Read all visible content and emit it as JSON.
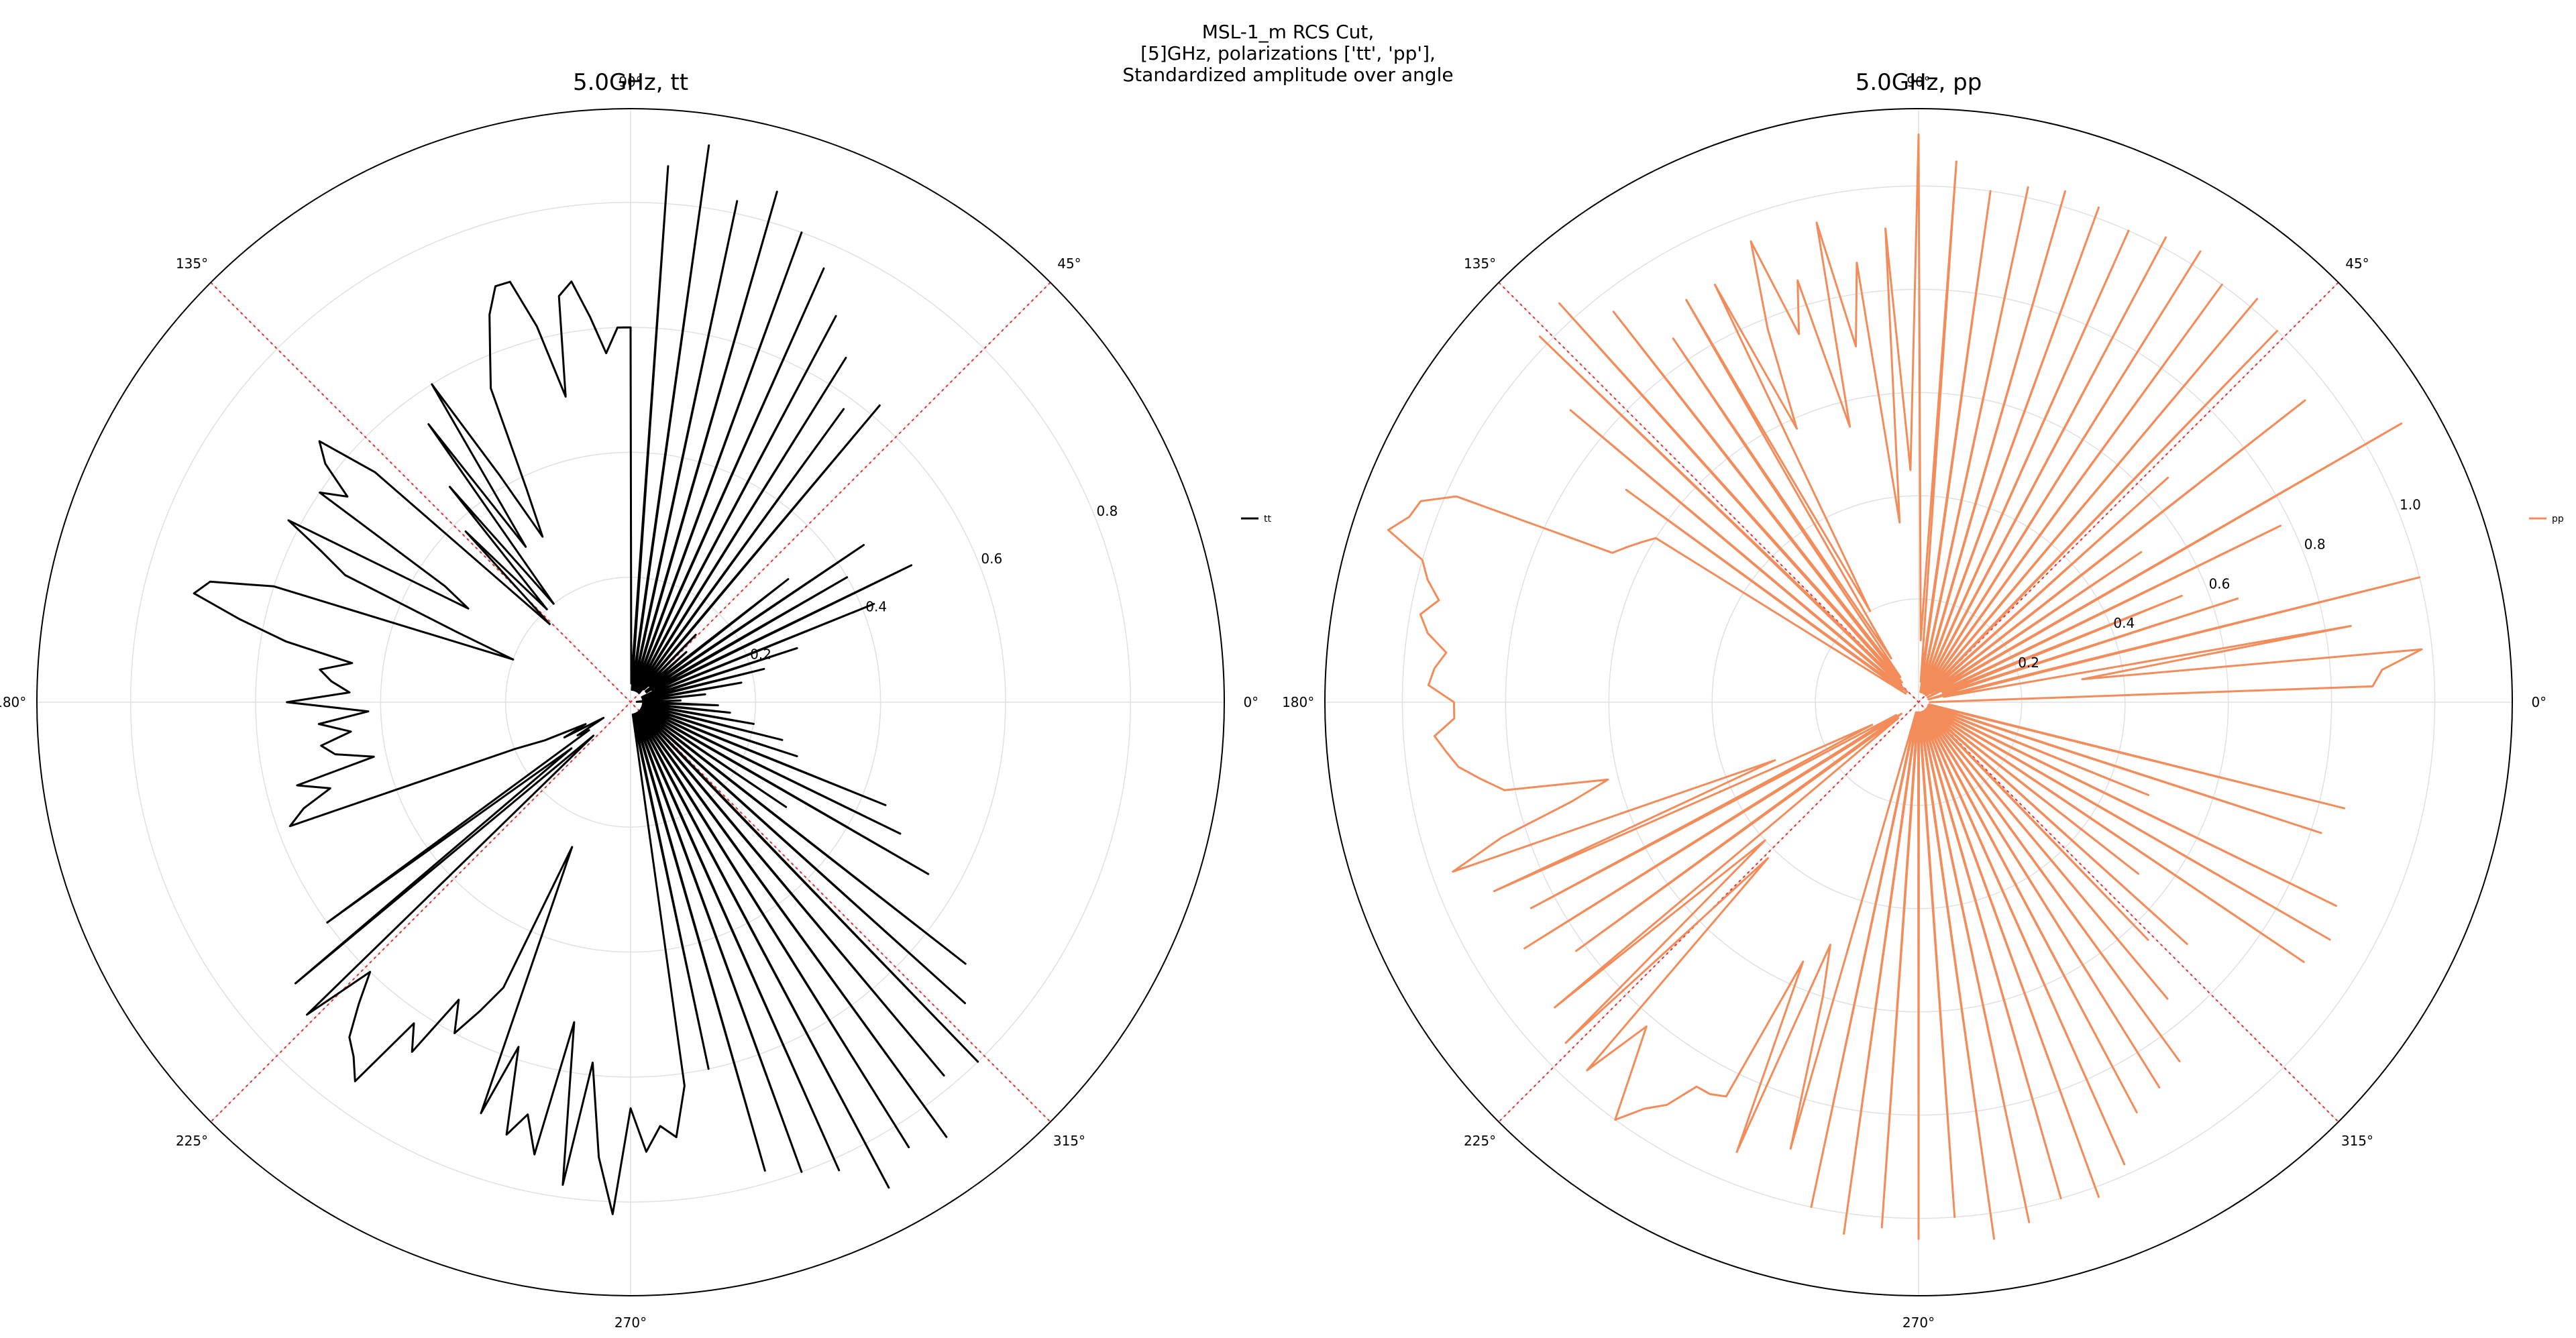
{
  "figure": {
    "suptitle_lines": [
      "MSL-1_m RCS Cut,",
      "[5]GHz, polarizations ['tt', 'pp'],",
      "Standardized amplitude over angle"
    ]
  },
  "colors": {
    "tt": "#000000",
    "pp": "#f28c5a",
    "reference_lines": "#e03030",
    "grid": "#e0e0e0",
    "frame": "#000000"
  },
  "angle_labels": [
    "0°",
    "45°",
    "90°",
    "135°",
    "180°",
    "225°",
    "270°",
    "315°"
  ],
  "chart_data": [
    {
      "type": "line",
      "projection": "polar",
      "title": "5.0GHz, tt",
      "angle_unit": "degrees",
      "theta_ticks": [
        0,
        45,
        90,
        135,
        180,
        225,
        270,
        315
      ],
      "r_ticks": [
        0.2,
        0.4,
        0.6,
        0.8
      ],
      "r_tick_labels": [
        "0.2",
        "0.4",
        "0.6",
        "0.8"
      ],
      "rlim": [
        0,
        0.95
      ],
      "grid": true,
      "reference_lines_deg": [
        45,
        135
      ],
      "legend_position": "right",
      "series": [
        {
          "name": "tt",
          "color": "#000000",
          "theta": [
            0,
            2,
            4,
            6,
            8,
            10,
            12,
            14,
            16,
            18,
            20,
            22,
            24,
            26,
            28,
            30,
            32,
            34,
            36,
            38,
            40,
            42,
            44,
            46,
            48,
            50,
            52,
            54,
            56,
            58,
            60,
            62,
            64,
            66,
            68,
            70,
            72,
            74,
            76,
            78,
            80,
            82,
            84,
            86,
            88,
            90,
            92,
            94,
            96,
            98,
            100,
            102,
            104,
            106,
            108,
            110,
            112,
            114,
            116,
            118,
            120,
            122,
            124,
            126,
            128,
            130,
            132,
            134,
            136,
            138,
            140,
            142,
            144,
            146,
            148,
            150,
            152,
            154,
            156,
            158,
            160,
            162,
            164,
            166,
            168,
            170,
            172,
            174,
            176,
            178,
            180,
            182,
            184,
            186,
            188,
            190,
            192,
            194,
            196,
            198,
            200,
            202,
            204,
            206,
            208,
            210,
            212,
            214,
            216,
            218,
            220,
            222,
            224,
            226,
            228,
            230,
            232,
            234,
            236,
            238,
            240,
            242,
            244,
            246,
            248,
            250,
            252,
            254,
            256,
            258,
            260,
            262,
            264,
            266,
            268,
            270,
            272,
            274,
            276,
            278,
            280,
            282,
            284,
            286,
            288,
            290,
            292,
            294,
            296,
            298,
            300,
            302,
            304,
            306,
            308,
            310,
            312,
            314,
            316,
            318,
            320,
            322,
            324,
            326,
            328,
            330,
            332,
            334,
            336,
            338,
            340,
            342,
            344,
            346,
            348,
            350,
            352,
            354,
            356,
            358
          ],
          "r": [
            0.03,
            0.08,
            0.01,
            0.12,
            0.02,
            0.18,
            0.02,
            0.22,
            0.03,
            0.28,
            0.02,
            0.42,
            0.02,
            0.5,
            0.04,
            0.4,
            0.03,
            0.45,
            0.03,
            0.32,
            0.04,
            0.12,
            0.03,
            0.15,
            0.02,
            0.62,
            0.02,
            0.58,
            0.02,
            0.65,
            0.02,
            0.7,
            0.02,
            0.76,
            0.02,
            0.8,
            0.02,
            0.85,
            0.02,
            0.82,
            0.02,
            0.9,
            0.02,
            0.86,
            0.03,
            0.6,
            0.6,
            0.56,
            0.62,
            0.68,
            0.66,
            0.5,
            0.62,
            0.7,
            0.7,
            0.66,
            0.6,
            0.55,
            0.38,
            0.3,
            0.42,
            0.6,
            0.3,
            0.55,
            0.2,
            0.45,
            0.2,
            0.38,
            0.18,
            0.55,
            0.65,
            0.62,
            0.56,
            0.6,
            0.35,
            0.3,
            0.62,
            0.55,
            0.5,
            0.3,
            0.2,
            0.6,
            0.7,
            0.72,
            0.64,
            0.56,
            0.45,
            0.5,
            0.48,
            0.45,
            0.55,
            0.42,
            0.5,
            0.45,
            0.5,
            0.48,
            0.42,
            0.55,
            0.5,
            0.55,
            0.58,
            0.2,
            0.15,
            0.08,
            0.12,
            0.05,
            0.1,
            0.08,
            0.6,
            0.12,
            0.7,
            0.08,
            0.72,
            0.6,
            0.65,
            0.7,
            0.72,
            0.75,
            0.62,
            0.66,
            0.55,
            0.6,
            0.55,
            0.5,
            0.25,
            0.7,
            0.58,
            0.72,
            0.68,
            0.74,
            0.52,
            0.78,
            0.58,
            0.73,
            0.82,
            0.65,
            0.72,
            0.68,
            0.7,
            0.62,
            0.02,
            0.6,
            0.02,
            0.78,
            0.02,
            0.8,
            0.02,
            0.82,
            0.02,
            0.88,
            0.02,
            0.84,
            0.02,
            0.86,
            0.02,
            0.78,
            0.02,
            0.8,
            0.02,
            0.72,
            0.02,
            0.68,
            0.02,
            0.3,
            0.02,
            0.55,
            0.02,
            0.48,
            0.02,
            0.44,
            0.02,
            0.28,
            0.02,
            0.25,
            0.02,
            0.2,
            0.02,
            0.16,
            0.02,
            0.14,
            0.02,
            0.12,
            0.02,
            0.08
          ]
        }
      ]
    },
    {
      "type": "line",
      "projection": "polar",
      "title": "5.0GHz, pp",
      "angle_unit": "degrees",
      "theta_ticks": [
        0,
        45,
        90,
        135,
        180,
        225,
        270,
        315
      ],
      "r_ticks": [
        0.2,
        0.4,
        0.6,
        0.8,
        1.0
      ],
      "r_tick_labels": [
        "0.2",
        "0.4",
        "0.6",
        "0.8",
        "1.0"
      ],
      "rlim": [
        0,
        1.15
      ],
      "grid": true,
      "reference_lines_deg": [
        45,
        135
      ],
      "legend_position": "right",
      "series": [
        {
          "name": "pp",
          "color": "#f28c5a",
          "theta": [
            0,
            2,
            4,
            6,
            8,
            10,
            12,
            14,
            16,
            18,
            20,
            22,
            24,
            26,
            28,
            30,
            32,
            34,
            36,
            38,
            40,
            42,
            44,
            46,
            48,
            50,
            52,
            54,
            56,
            58,
            60,
            62,
            64,
            66,
            68,
            70,
            72,
            74,
            76,
            78,
            80,
            82,
            84,
            86,
            88,
            90,
            92,
            94,
            96,
            98,
            100,
            102,
            104,
            106,
            108,
            110,
            112,
            114,
            116,
            118,
            120,
            122,
            124,
            126,
            128,
            130,
            132,
            134,
            136,
            138,
            140,
            142,
            144,
            146,
            148,
            150,
            152,
            154,
            156,
            158,
            160,
            162,
            164,
            166,
            168,
            170,
            172,
            174,
            176,
            178,
            180,
            182,
            184,
            186,
            188,
            190,
            192,
            194,
            196,
            198,
            200,
            202,
            204,
            206,
            208,
            210,
            212,
            214,
            216,
            218,
            220,
            222,
            224,
            226,
            228,
            230,
            232,
            234,
            236,
            238,
            240,
            242,
            244,
            246,
            248,
            250,
            252,
            254,
            256,
            258,
            260,
            262,
            264,
            266,
            268,
            270,
            272,
            274,
            276,
            278,
            280,
            282,
            284,
            286,
            288,
            290,
            292,
            294,
            296,
            298,
            300,
            302,
            304,
            306,
            308,
            310,
            312,
            314,
            316,
            318,
            320,
            322,
            324,
            326,
            328,
            330,
            332,
            334,
            336,
            338,
            340,
            342,
            344,
            346,
            348,
            350,
            352,
            354,
            356,
            358
          ],
          "r": [
            0.02,
            0.88,
            0.9,
            0.98,
            0.32,
            0.85,
            0.05,
            1.0,
            0.02,
            0.65,
            0.05,
            0.55,
            0.05,
            0.78,
            0.02,
            1.08,
            0.04,
            0.52,
            0.03,
            0.95,
            0.02,
            0.65,
            0.03,
            1.0,
            0.02,
            1.02,
            0.02,
            1.0,
            0.02,
            1.03,
            0.02,
            1.02,
            0.02,
            1.0,
            0.02,
            1.02,
            0.02,
            1.03,
            0.02,
            1.02,
            0.02,
            1.0,
            0.04,
            1.05,
            0.12,
            1.1,
            0.45,
            0.92,
            0.35,
            0.86,
            0.7,
            0.95,
            0.55,
            0.85,
            0.75,
            0.95,
            0.78,
            0.58,
            0.9,
            0.2,
            0.9,
            0.1,
            0.85,
            0.06,
            0.96,
            0.05,
            1.04,
            0.05,
            1.02,
            0.03,
            0.88,
            0.04,
            0.7,
            0.03,
            0.6,
            0.62,
            0.64,
            0.66,
            0.98,
            1.04,
            1.05,
            1.08,
            1.0,
            0.98,
            0.95,
            0.98,
            0.96,
            0.92,
            0.94,
            0.95,
            0.9,
            0.9,
            0.94,
            0.92,
            0.9,
            0.86,
            0.82,
            0.62,
            0.7,
            0.85,
            0.96,
            0.3,
            0.9,
            0.1,
            0.85,
            0.05,
            0.9,
            0.04,
            0.82,
            0.05,
            0.92,
            0.4,
            0.95,
            0.42,
            0.96,
            0.82,
            0.9,
            1.0,
            0.95,
            0.92,
            0.86,
            0.86,
            0.85,
            0.55,
            0.94,
            0.5,
            0.6,
            0.9,
            0.02,
            1.0,
            0.02,
            1.04,
            0.02,
            1.02,
            0.02,
            1.04,
            0.02,
            1.0,
            0.02,
            1.05,
            0.02,
            1.03,
            0.02,
            1.0,
            0.02,
            1.02,
            0.02,
            0.98,
            0.02,
            0.9,
            0.02,
            0.88,
            0.02,
            0.86,
            0.02,
            0.75,
            0.02,
            0.64,
            0.02,
            0.7,
            0.02,
            0.54,
            0.02,
            0.9,
            0.02,
            0.92,
            0.02,
            0.9,
            0.02,
            0.48,
            0.02,
            0.82,
            0.02,
            0.85,
            0.02,
            0.02
          ]
        }
      ]
    }
  ]
}
